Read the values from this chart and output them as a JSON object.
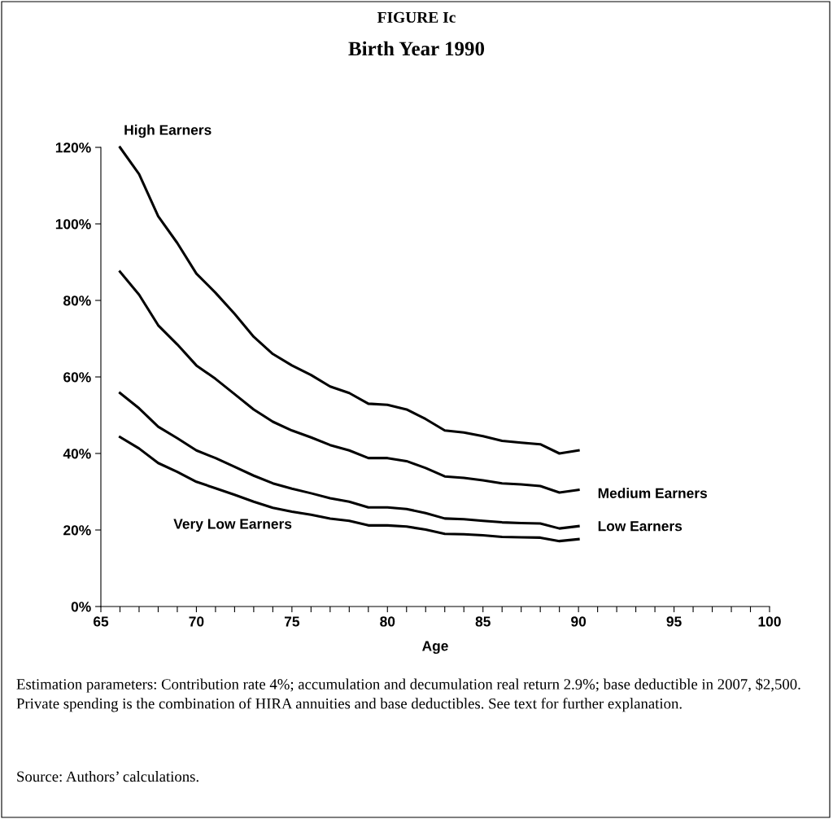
{
  "chart_data": {
    "type": "line",
    "title": "FIGURE Ic",
    "subtitle": "Birth Year 1990",
    "xlabel": "Age",
    "x": [
      66,
      67,
      68,
      69,
      70,
      71,
      72,
      73,
      74,
      75,
      76,
      77,
      78,
      79,
      80,
      81,
      82,
      83,
      84,
      85,
      86,
      87,
      88,
      89,
      90
    ],
    "series": [
      {
        "name": "High Earners",
        "color": "#000000",
        "values": [
          120,
          113,
          102,
          95,
          87,
          82,
          76.5,
          70.5,
          66,
          63,
          60.5,
          57.5,
          55.8,
          53,
          52.7,
          51.5,
          49,
          46,
          45.5,
          44.5,
          43.3,
          42.8,
          42.4,
          40,
          40.8
        ]
      },
      {
        "name": "Medium Earners",
        "color": "#000000",
        "values": [
          87.5,
          81.5,
          73.5,
          68.5,
          63,
          59.5,
          55.5,
          51.5,
          48.3,
          46,
          44.2,
          42.2,
          40.8,
          38.8,
          38.8,
          38,
          36.2,
          34,
          33.6,
          33,
          32.2,
          31.9,
          31.5,
          29.8,
          30.5
        ]
      },
      {
        "name": "Low Earners",
        "color": "#000000",
        "values": [
          55.8,
          51.8,
          47,
          44,
          40.8,
          38.8,
          36.5,
          34.2,
          32.2,
          30.8,
          29.6,
          28.3,
          27.4,
          25.9,
          25.9,
          25.5,
          24.4,
          23,
          22.8,
          22.4,
          22,
          21.8,
          21.7,
          20.4,
          21
        ]
      },
      {
        "name": "Very Low Earners",
        "color": "#000000",
        "values": [
          44.3,
          41.3,
          37.5,
          35.2,
          32.6,
          30.9,
          29.2,
          27.4,
          25.8,
          24.8,
          24,
          23,
          22.4,
          21.2,
          21.2,
          20.9,
          20.1,
          19,
          18.9,
          18.6,
          18.2,
          18.1,
          18,
          17.1,
          17.6
        ]
      }
    ],
    "xlim": [
      65,
      100
    ],
    "xticks": [
      65,
      {
        "value": 66,
        "label": null
      },
      {
        "value": 67,
        "label": null
      },
      {
        "value": 68,
        "label": null
      },
      {
        "value": 69,
        "label": null
      },
      70,
      {
        "value": 71,
        "label": null
      },
      {
        "value": 72,
        "label": null
      },
      {
        "value": 73,
        "label": null
      },
      {
        "value": 74,
        "label": null
      },
      75,
      {
        "value": 76,
        "label": null
      },
      {
        "value": 77,
        "label": null
      },
      {
        "value": 78,
        "label": null
      },
      {
        "value": 79,
        "label": null
      },
      80,
      {
        "value": 81,
        "label": null
      },
      {
        "value": 82,
        "label": null
      },
      {
        "value": 83,
        "label": null
      },
      {
        "value": 84,
        "label": null
      },
      85,
      {
        "value": 86,
        "label": null
      },
      {
        "value": 87,
        "label": null
      },
      {
        "value": 88,
        "label": null
      },
      {
        "value": 89,
        "label": null
      },
      90,
      {
        "value": 91,
        "label": null
      },
      {
        "value": 92,
        "label": null
      },
      {
        "value": 93,
        "label": null
      },
      {
        "value": 94,
        "label": null
      },
      95,
      {
        "value": 96,
        "label": null
      },
      {
        "value": 97,
        "label": null
      },
      {
        "value": 98,
        "label": null
      },
      {
        "value": 99,
        "label": null
      },
      100
    ],
    "ylim": [
      0,
      120
    ],
    "yticks": [
      {
        "value": 0,
        "label": "0%"
      },
      {
        "value": 20,
        "label": "20%"
      },
      {
        "value": 40,
        "label": "40%"
      },
      {
        "value": 60,
        "label": "60%"
      },
      {
        "value": 80,
        "label": "80%"
      },
      {
        "value": 100,
        "label": "100%"
      },
      {
        "value": 120,
        "label": "120%"
      }
    ],
    "grid": false,
    "legend": false,
    "marker": "none",
    "line_style": "solid",
    "annotations": [
      "Estimation parameters: Contribution rate 4%; accumulation and decumulation real return 2.9%; base deductible in 2007, $2,500. Private spending is the combination of HIRA annuities and base deductibles. See text for further explanation.",
      "Source: Authors’ calculations."
    ]
  }
}
